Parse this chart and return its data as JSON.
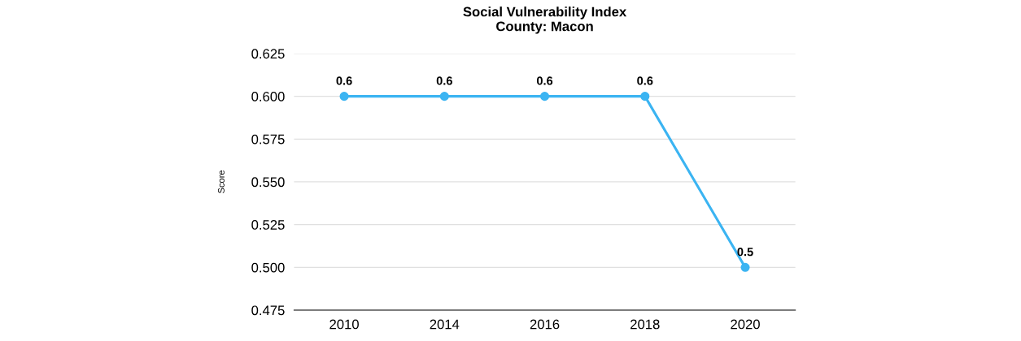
{
  "chart_data": {
    "type": "line",
    "title": "Social Vulnerability Index\nCounty: Macon",
    "ylabel": "Score",
    "categories": [
      "2010",
      "2014",
      "2016",
      "2018",
      "2020"
    ],
    "series": [
      {
        "color": "#3bb4f2",
        "values": [
          0.6,
          0.6,
          0.6,
          0.6,
          0.5
        ]
      }
    ],
    "ylim": [
      0.475,
      0.625
    ],
    "yticks": [
      {
        "value": 0.475,
        "label": "0.475"
      },
      {
        "value": 0.5,
        "label": "0.500"
      },
      {
        "value": 0.525,
        "label": "0.525"
      },
      {
        "value": 0.55,
        "label": "0.550"
      },
      {
        "value": 0.575,
        "label": "0.575"
      },
      {
        "value": 0.6,
        "label": "0.600"
      },
      {
        "value": 0.625,
        "label": "0.625"
      }
    ],
    "grid": "y",
    "marker": "circle",
    "line_style": "solid",
    "data_labels": true,
    "legend": false
  }
}
